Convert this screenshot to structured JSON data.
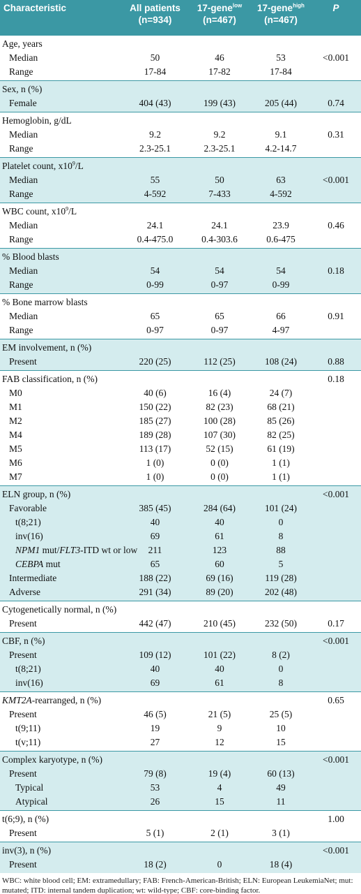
{
  "table": {
    "header": [
      {
        "parts": [
          {
            "text": "Characteristic"
          }
        ]
      },
      {
        "parts": [
          {
            "text": "All patients"
          }
        ],
        "n": "(n=934)"
      },
      {
        "parts": [
          {
            "text": "17-gene"
          },
          {
            "text": "low",
            "style": "sup"
          }
        ],
        "n": "(n=467)"
      },
      {
        "parts": [
          {
            "text": "17-gene"
          },
          {
            "text": "high",
            "style": "sup"
          }
        ],
        "n": "(n=467)"
      },
      {
        "parts": [
          {
            "text": "P",
            "style": "italic"
          }
        ]
      }
    ],
    "sections": [
      {
        "rows": [
          {
            "label": "Age, years",
            "level": 0,
            "cells": [
              null,
              null,
              null,
              null
            ]
          },
          {
            "label": "Median",
            "level": 1,
            "cells": [
              "50",
              "46",
              "53",
              "<0.001"
            ]
          },
          {
            "label": "Range",
            "level": 1,
            "cells": [
              "17-84",
              "17-82",
              "17-84",
              null
            ]
          }
        ]
      },
      {
        "rows": [
          {
            "label": "Sex, n (%)",
            "level": 0,
            "cells": [
              null,
              null,
              null,
              null
            ]
          },
          {
            "label": "Female",
            "level": 1,
            "cells": [
              "404 (43)",
              "199 (43)",
              "205 (44)",
              "0.74"
            ]
          }
        ]
      },
      {
        "rows": [
          {
            "label": "Hemoglobin, g/dL",
            "level": 0,
            "cells": [
              null,
              null,
              null,
              null
            ]
          },
          {
            "label": "Median",
            "level": 1,
            "cells": [
              "9.2",
              "9.2",
              "9.1",
              "0.31"
            ]
          },
          {
            "label": "Range",
            "level": 1,
            "cells": [
              "2.3-25.1",
              "2.3-25.1",
              "4.2-14.7",
              null
            ]
          }
        ]
      },
      {
        "rows": [
          {
            "label": [
              {
                "text": "Platelet count, x10"
              },
              {
                "text": "9",
                "style": "sup"
              },
              {
                "text": "/L"
              }
            ],
            "level": 0,
            "cells": [
              null,
              null,
              null,
              null
            ]
          },
          {
            "label": "Median",
            "level": 1,
            "cells": [
              "55",
              "50",
              "63",
              "<0.001"
            ]
          },
          {
            "label": "Range",
            "level": 1,
            "cells": [
              "4-592",
              "7-433",
              "4-592",
              null
            ]
          }
        ]
      },
      {
        "rows": [
          {
            "label": [
              {
                "text": "WBC count, x10"
              },
              {
                "text": "9",
                "style": "sup"
              },
              {
                "text": "/L"
              }
            ],
            "level": 0,
            "cells": [
              null,
              null,
              null,
              null
            ]
          },
          {
            "label": "Median",
            "level": 1,
            "cells": [
              "24.1",
              "24.1",
              "23.9",
              "0.46"
            ]
          },
          {
            "label": "Range",
            "level": 1,
            "cells": [
              "0.4-475.0",
              "0.4-303.6",
              "0.6-475",
              null
            ]
          }
        ]
      },
      {
        "rows": [
          {
            "label": "% Blood blasts",
            "level": 0,
            "cells": [
              null,
              null,
              null,
              null
            ]
          },
          {
            "label": "Median",
            "level": 1,
            "cells": [
              "54",
              "54",
              "54",
              "0.18"
            ]
          },
          {
            "label": "Range",
            "level": 1,
            "cells": [
              "0-99",
              "0-97",
              "0-99",
              null
            ]
          }
        ]
      },
      {
        "rows": [
          {
            "label": "% Bone marrow blasts",
            "level": 0,
            "cells": [
              null,
              null,
              null,
              null
            ]
          },
          {
            "label": "Median",
            "level": 1,
            "cells": [
              "65",
              "65",
              "66",
              "0.91"
            ]
          },
          {
            "label": "Range",
            "level": 1,
            "cells": [
              "0-97",
              "0-97",
              "4-97",
              null
            ]
          }
        ]
      },
      {
        "rows": [
          {
            "label": "EM involvement, n (%)",
            "level": 0,
            "cells": [
              null,
              null,
              null,
              null
            ]
          },
          {
            "label": "Present",
            "level": 1,
            "cells": [
              "220 (25)",
              "112 (25)",
              "108 (24)",
              "0.88"
            ]
          }
        ]
      },
      {
        "rows": [
          {
            "label": "FAB classification, n (%)",
            "level": 0,
            "cells": [
              null,
              null,
              null,
              "0.18"
            ]
          },
          {
            "label": "M0",
            "level": 1,
            "cells": [
              "40 (6)",
              "16 (4)",
              "24 (7)",
              null
            ]
          },
          {
            "label": "M1",
            "level": 1,
            "cells": [
              "150 (22)",
              "82 (23)",
              "68 (21)",
              null
            ]
          },
          {
            "label": "M2",
            "level": 1,
            "cells": [
              "185 (27)",
              "100 (28)",
              "85 (26)",
              null
            ]
          },
          {
            "label": "M4",
            "level": 1,
            "cells": [
              "189 (28)",
              "107 (30)",
              "82 (25)",
              null
            ]
          },
          {
            "label": "M5",
            "level": 1,
            "cells": [
              "113 (17)",
              "52 (15)",
              "61 (19)",
              null
            ]
          },
          {
            "label": "M6",
            "level": 1,
            "cells": [
              "1 (0)",
              "0 (0)",
              "1 (1)",
              null
            ]
          },
          {
            "label": "M7",
            "level": 1,
            "cells": [
              "1 (0)",
              "0 (0)",
              "1 (1)",
              null
            ]
          }
        ]
      },
      {
        "rows": [
          {
            "label": "ELN group, n (%)",
            "level": 0,
            "cells": [
              null,
              null,
              null,
              "<0.001"
            ]
          },
          {
            "label": "Favorable",
            "level": 1,
            "cells": [
              "385 (45)",
              "284 (64)",
              "101 (24)",
              null
            ]
          },
          {
            "label": "t(8;21)",
            "level": 2,
            "cells": [
              "40",
              "40",
              "0",
              null
            ]
          },
          {
            "label": "inv(16)",
            "level": 2,
            "cells": [
              "69",
              "61",
              "8",
              null
            ]
          },
          {
            "label": [
              {
                "text": "NPM1",
                "style": "italic"
              },
              {
                "text": " mut/"
              },
              {
                "text": "FLT3",
                "style": "italic"
              },
              {
                "text": "-ITD wt or low"
              }
            ],
            "level": 2,
            "cells": [
              "211",
              "123",
              "88",
              null
            ]
          },
          {
            "label": [
              {
                "text": "CEBPA",
                "style": "italic"
              },
              {
                "text": " mut"
              }
            ],
            "level": 2,
            "cells": [
              "65",
              "60",
              "5",
              null
            ]
          },
          {
            "label": "Intermediate",
            "level": 1,
            "cells": [
              "188 (22)",
              "69 (16)",
              "119 (28)",
              null
            ]
          },
          {
            "label": "Adverse",
            "level": 1,
            "cells": [
              "291 (34)",
              "89 (20)",
              "202 (48)",
              null
            ]
          }
        ]
      },
      {
        "rows": [
          {
            "label": "Cytogenetically normal, n (%)",
            "level": 0,
            "cells": [
              null,
              null,
              null,
              null
            ]
          },
          {
            "label": "Present",
            "level": 1,
            "cells": [
              "442 (47)",
              "210 (45)",
              "232 (50)",
              "0.17"
            ]
          }
        ]
      },
      {
        "rows": [
          {
            "label": "CBF, n (%)",
            "level": 0,
            "cells": [
              null,
              null,
              null,
              "<0.001"
            ]
          },
          {
            "label": "Present",
            "level": 1,
            "cells": [
              "109 (12)",
              "101 (22)",
              "8 (2)",
              null
            ]
          },
          {
            "label": "t(8;21)",
            "level": 2,
            "cells": [
              "40",
              "40",
              "0",
              null
            ]
          },
          {
            "label": "inv(16)",
            "level": 2,
            "cells": [
              "69",
              "61",
              "8",
              null
            ]
          }
        ]
      },
      {
        "rows": [
          {
            "label": [
              {
                "text": "KMT2A",
                "style": "italic"
              },
              {
                "text": "-rearranged, n (%)"
              }
            ],
            "level": 0,
            "cells": [
              null,
              null,
              null,
              "0.65"
            ]
          },
          {
            "label": "Present",
            "level": 1,
            "cells": [
              "46 (5)",
              "21 (5)",
              "25 (5)",
              null
            ]
          },
          {
            "label": "t(9;11)",
            "level": 2,
            "cells": [
              "19",
              "9",
              "10",
              null
            ]
          },
          {
            "label": "t(v;11)",
            "level": 2,
            "cells": [
              "27",
              "12",
              "15",
              null
            ]
          }
        ]
      },
      {
        "rows": [
          {
            "label": "Complex karyotype, n (%)",
            "level": 0,
            "cells": [
              null,
              null,
              null,
              "<0.001"
            ]
          },
          {
            "label": "Present",
            "level": 1,
            "cells": [
              "79 (8)",
              "19 (4)",
              "60 (13)",
              null
            ]
          },
          {
            "label": "Typical",
            "level": 2,
            "cells": [
              "53",
              "4",
              "49",
              null
            ]
          },
          {
            "label": "Atypical",
            "level": 2,
            "cells": [
              "26",
              "15",
              "11",
              null
            ]
          }
        ]
      },
      {
        "rows": [
          {
            "label": "t(6;9), n (%)",
            "level": 0,
            "cells": [
              null,
              null,
              null,
              "1.00"
            ]
          },
          {
            "label": "Present",
            "level": 1,
            "cells": [
              "5 (1)",
              "2 (1)",
              "3 (1)",
              null
            ]
          }
        ]
      },
      {
        "rows": [
          {
            "label": "inv(3), n (%)",
            "level": 0,
            "cells": [
              null,
              null,
              null,
              "<0.001"
            ]
          },
          {
            "label": "Present",
            "level": 1,
            "cells": [
              "18 (2)",
              "0",
              "18 (4)",
              null
            ]
          }
        ]
      }
    ]
  },
  "footnote": "WBC: white blood cell; EM: extramedullary; FAB: French-American-British; ELN: European LeukemiaNet; mut: mutated; ITD: internal tandem duplication; wt: wild-type; CBF: core-binding factor."
}
